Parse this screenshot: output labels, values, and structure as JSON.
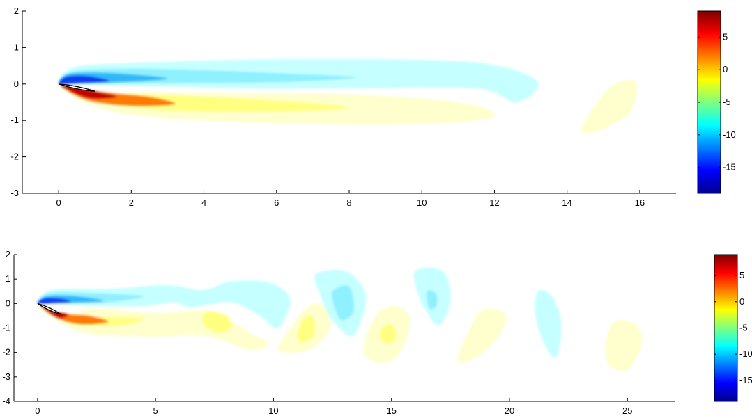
{
  "chart_data": [
    {
      "type": "heatmap",
      "subtype": "filled-contour",
      "title": "",
      "xlabel": "",
      "ylabel": "",
      "xlim": [
        -1,
        17
      ],
      "ylim": [
        -3,
        2
      ],
      "xticks": [
        0,
        2,
        4,
        6,
        8,
        10,
        12,
        14,
        16
      ],
      "yticks": [
        2,
        1,
        0,
        -1,
        -2,
        -3
      ],
      "grid": false,
      "colormap": "jet",
      "colorbar": {
        "range": [
          -19,
          9
        ],
        "ticks": [
          5,
          0,
          -5,
          -10,
          -15
        ]
      },
      "airfoil": {
        "leading_edge": [
          0,
          0
        ],
        "trailing_edge": [
          1.0,
          -0.2
        ]
      },
      "regions": [
        {
          "sign": "negative",
          "value": -5.5,
          "color": "#c6ffff",
          "outline": [
            [
              0,
              0.03
            ],
            [
              0.4,
              0.45
            ],
            [
              2,
              0.58
            ],
            [
              6,
              0.68
            ],
            [
              10,
              0.66
            ],
            [
              12,
              0.52
            ],
            [
              13.2,
              0.05
            ],
            [
              12.6,
              -0.5
            ],
            [
              11.5,
              -0.12
            ],
            [
              8,
              -0.12
            ],
            [
              5,
              -0.12
            ],
            [
              2,
              -0.05
            ],
            [
              0.3,
              0
            ]
          ]
        },
        {
          "sign": "negative",
          "value": -8,
          "color": "#8ff0ff",
          "outline": [
            [
              0,
              0.03
            ],
            [
              0.4,
              0.35
            ],
            [
              2,
              0.42
            ],
            [
              4,
              0.38
            ],
            [
              6,
              0.3
            ],
            [
              8.2,
              0.18
            ],
            [
              6,
              0.05
            ],
            [
              3,
              0.02
            ],
            [
              0.4,
              0
            ]
          ]
        },
        {
          "sign": "negative",
          "value": -11,
          "color": "#30b8f8",
          "outline": [
            [
              0,
              0.03
            ],
            [
              0.3,
              0.28
            ],
            [
              1.5,
              0.3
            ],
            [
              3,
              0.15
            ],
            [
              1.5,
              0.04
            ],
            [
              0.3,
              0
            ]
          ]
        },
        {
          "sign": "negative",
          "value": -16,
          "color": "#0a3cf0",
          "outline": [
            [
              0,
              0.02
            ],
            [
              0.2,
              0.2
            ],
            [
              0.8,
              0.22
            ],
            [
              1.4,
              0.08
            ],
            [
              0.6,
              0.02
            ],
            [
              0.1,
              0
            ]
          ]
        },
        {
          "sign": "positive",
          "value": -4.5,
          "color": "#feffcc",
          "outline": [
            [
              0,
              -0.05
            ],
            [
              1,
              -0.3
            ],
            [
              2,
              -0.22
            ],
            [
              5,
              -0.25
            ],
            [
              8,
              -0.28
            ],
            [
              11,
              -0.5
            ],
            [
              12,
              -0.9
            ],
            [
              10,
              -1.1
            ],
            [
              6,
              -1.08
            ],
            [
              2.5,
              -0.9
            ],
            [
              0.8,
              -0.55
            ],
            [
              0.1,
              -0.05
            ]
          ]
        },
        {
          "sign": "positive",
          "value": -3,
          "color": "#ffff80",
          "outline": [
            [
              0.1,
              -0.1
            ],
            [
              1,
              -0.25
            ],
            [
              3,
              -0.3
            ],
            [
              6,
              -0.45
            ],
            [
              8,
              -0.65
            ],
            [
              6,
              -0.75
            ],
            [
              3,
              -0.72
            ],
            [
              1,
              -0.5
            ]
          ]
        },
        {
          "sign": "positive",
          "value": 0,
          "color": "#ff7a00",
          "outline": [
            [
              0.1,
              -0.05
            ],
            [
              1,
              -0.2
            ],
            [
              2.5,
              -0.35
            ],
            [
              3.2,
              -0.55
            ],
            [
              2,
              -0.6
            ],
            [
              0.8,
              -0.45
            ]
          ]
        },
        {
          "sign": "positive",
          "value": 5,
          "color": "#c00000",
          "outline": [
            [
              0.1,
              -0.05
            ],
            [
              1,
              -0.2
            ],
            [
              1.6,
              -0.35
            ],
            [
              0.9,
              -0.4
            ],
            [
              0.3,
              -0.2
            ]
          ]
        },
        {
          "sign": "positive",
          "value": -4.5,
          "color": "#feffcc",
          "outline": [
            [
              14.4,
              -1.2
            ],
            [
              15.2,
              -0.08
            ],
            [
              15.9,
              0.05
            ],
            [
              15.7,
              -0.8
            ],
            [
              14.8,
              -1.3
            ]
          ]
        }
      ]
    },
    {
      "type": "heatmap",
      "subtype": "filled-contour",
      "title": "",
      "xlabel": "",
      "ylabel": "",
      "xlim": [
        -1,
        27
      ],
      "ylim": [
        -4,
        2
      ],
      "xticks": [
        0,
        5,
        10,
        15,
        20,
        25
      ],
      "yticks": [
        2,
        1,
        0,
        -1,
        -2,
        -3,
        -4
      ],
      "grid": false,
      "colormap": "jet",
      "colorbar": {
        "range": [
          -19,
          9
        ],
        "ticks": [
          5,
          0,
          -5,
          -10,
          -15
        ]
      },
      "airfoil": {
        "leading_edge": [
          0,
          0
        ],
        "trailing_edge": [
          1.0,
          -0.45
        ]
      },
      "regions": [
        {
          "sign": "negative",
          "value": -5.5,
          "color": "#c6ffff",
          "outline": [
            [
              0,
              0.03
            ],
            [
              0.6,
              0.55
            ],
            [
              3,
              0.6
            ],
            [
              5.5,
              0.75
            ],
            [
              7,
              0.55
            ],
            [
              8.2,
              0.9
            ],
            [
              9.8,
              0.85
            ],
            [
              10.7,
              0.2
            ],
            [
              10.2,
              -1.0
            ],
            [
              9.4,
              -0.5
            ],
            [
              8.2,
              0.05
            ],
            [
              6.5,
              -0.15
            ],
            [
              5.8,
              0.05
            ],
            [
              4.5,
              -0.1
            ],
            [
              2.5,
              -0.1
            ],
            [
              0.4,
              0
            ]
          ]
        },
        {
          "sign": "negative",
          "value": -8,
          "color": "#8ff0ff",
          "outline": [
            [
              0,
              0.03
            ],
            [
              0.5,
              0.42
            ],
            [
              2.5,
              0.42
            ],
            [
              4.5,
              0.3
            ],
            [
              3,
              0.05
            ],
            [
              0.4,
              0
            ]
          ]
        },
        {
          "sign": "negative",
          "value": -11,
          "color": "#30b8f8",
          "outline": [
            [
              0,
              0.03
            ],
            [
              0.4,
              0.3
            ],
            [
              1.6,
              0.3
            ],
            [
              2.8,
              0.1
            ],
            [
              1.4,
              0.02
            ],
            [
              0.3,
              0
            ]
          ]
        },
        {
          "sign": "negative",
          "value": -16,
          "color": "#0a3cf0",
          "outline": [
            [
              0,
              0.02
            ],
            [
              0.3,
              0.22
            ],
            [
              1,
              0.2
            ],
            [
              1.4,
              0.06
            ],
            [
              0.6,
              0.01
            ]
          ]
        },
        {
          "sign": "negative",
          "value": -5.5,
          "color": "#c6ffff",
          "outline": [
            [
              11.8,
              1.2
            ],
            [
              13.1,
              1.3
            ],
            [
              13.9,
              0.3
            ],
            [
              13.4,
              -1.3
            ],
            [
              12.5,
              -0.7
            ],
            [
              12,
              0.3
            ]
          ]
        },
        {
          "sign": "negative",
          "value": -8,
          "color": "#8ff0ff",
          "outline": [
            [
              12.5,
              0.5
            ],
            [
              13.2,
              0.7
            ],
            [
              13.4,
              -0.3
            ],
            [
              12.9,
              -0.7
            ],
            [
              12.6,
              -0.2
            ]
          ]
        },
        {
          "sign": "negative",
          "value": -5.5,
          "color": "#c6ffff",
          "outline": [
            [
              16.1,
              1.4
            ],
            [
              17.2,
              1.3
            ],
            [
              17.5,
              0.1
            ],
            [
              17,
              -0.9
            ],
            [
              16.4,
              -0.2
            ],
            [
              16,
              0.8
            ]
          ]
        },
        {
          "sign": "negative",
          "value": -8,
          "color": "#8ff0ff",
          "outline": [
            [
              16.5,
              0.5
            ],
            [
              16.9,
              0.4
            ],
            [
              16.9,
              -0.1
            ],
            [
              16.6,
              -0.2
            ]
          ]
        },
        {
          "sign": "negative",
          "value": -5.5,
          "color": "#c6ffff",
          "outline": [
            [
              21.2,
              0.5
            ],
            [
              21.8,
              0.3
            ],
            [
              22.2,
              -0.8
            ],
            [
              22,
              -2.2
            ],
            [
              21.5,
              -1.7
            ],
            [
              21.1,
              -0.5
            ]
          ]
        },
        {
          "sign": "positive",
          "value": -4.5,
          "color": "#feffcc",
          "outline": [
            [
              0,
              -0.05
            ],
            [
              1,
              -0.5
            ],
            [
              2.5,
              -0.2
            ],
            [
              5,
              -0.4
            ],
            [
              6.5,
              -0.3
            ],
            [
              7.5,
              -0.35
            ],
            [
              9,
              -1.2
            ],
            [
              9.8,
              -1.65
            ],
            [
              9,
              -1.9
            ],
            [
              7.5,
              -1.4
            ],
            [
              6.5,
              -1.3
            ],
            [
              4.5,
              -1.35
            ],
            [
              2,
              -1.2
            ],
            [
              0.5,
              -0.5
            ]
          ]
        },
        {
          "sign": "positive",
          "value": -3,
          "color": "#ffff80",
          "outline": [
            [
              0.3,
              -0.2
            ],
            [
              1.5,
              -0.5
            ],
            [
              3,
              -0.55
            ],
            [
              4.5,
              -0.6
            ],
            [
              3.5,
              -0.9
            ],
            [
              1.5,
              -0.85
            ]
          ]
        },
        {
          "sign": "positive",
          "value": 0,
          "color": "#ff7a00",
          "outline": [
            [
              0.1,
              -0.05
            ],
            [
              1,
              -0.4
            ],
            [
              2.2,
              -0.5
            ],
            [
              3,
              -0.75
            ],
            [
              1.8,
              -0.85
            ],
            [
              0.7,
              -0.55
            ]
          ]
        },
        {
          "sign": "positive",
          "value": 5,
          "color": "#c00000",
          "outline": [
            [
              0.1,
              -0.05
            ],
            [
              0.6,
              -0.3
            ],
            [
              1.3,
              -0.45
            ],
            [
              0.9,
              -0.6
            ],
            [
              0.4,
              -0.3
            ]
          ]
        },
        {
          "sign": "positive",
          "value": -3,
          "color": "#ffff80",
          "outline": [
            [
              7.2,
              -0.35
            ],
            [
              8,
              -0.5
            ],
            [
              8.2,
              -1.0
            ],
            [
              7.6,
              -1.2
            ],
            [
              7,
              -0.8
            ]
          ]
        },
        {
          "sign": "positive",
          "value": -4.5,
          "color": "#feffcc",
          "outline": [
            [
              10.8,
              -0.9
            ],
            [
              11.5,
              -0.1
            ],
            [
              12.1,
              -0.1
            ],
            [
              12.4,
              -1.0
            ],
            [
              11.5,
              -1.9
            ],
            [
              10.2,
              -1.9
            ]
          ]
        },
        {
          "sign": "positive",
          "value": -3,
          "color": "#ffff80",
          "outline": [
            [
              11,
              -1.3
            ],
            [
              11.3,
              -0.6
            ],
            [
              11.7,
              -0.6
            ],
            [
              11.7,
              -1.3
            ],
            [
              11.2,
              -1.6
            ]
          ]
        },
        {
          "sign": "positive",
          "value": -4.5,
          "color": "#feffcc",
          "outline": [
            [
              14.5,
              -0.3
            ],
            [
              15.5,
              -0.2
            ],
            [
              15.8,
              -0.9
            ],
            [
              15.2,
              -2.2
            ],
            [
              14.3,
              -2.4
            ],
            [
              13.8,
              -1.8
            ]
          ]
        },
        {
          "sign": "positive",
          "value": -3,
          "color": "#ffff80",
          "outline": [
            [
              14.6,
              -1.0
            ],
            [
              15,
              -0.85
            ],
            [
              15.2,
              -1.4
            ],
            [
              14.8,
              -1.65
            ],
            [
              14.5,
              -1.35
            ]
          ]
        },
        {
          "sign": "positive",
          "value": -4.5,
          "color": "#feffcc",
          "outline": [
            [
              18.8,
              -0.3
            ],
            [
              19.8,
              -0.4
            ],
            [
              19.6,
              -1.3
            ],
            [
              18.6,
              -2.2
            ],
            [
              17.8,
              -2.3
            ],
            [
              18.2,
              -1.3
            ]
          ]
        },
        {
          "sign": "positive",
          "value": -4.5,
          "color": "#feffcc",
          "outline": [
            [
              24.5,
              -0.7
            ],
            [
              25.4,
              -0.9
            ],
            [
              25.6,
              -1.7
            ],
            [
              25,
              -2.7
            ],
            [
              24.2,
              -2.5
            ],
            [
              24.1,
              -1.5
            ]
          ]
        }
      ]
    }
  ],
  "colors": {
    "axis": "#000000",
    "background": "#ffffff",
    "airfoil_outline": "#000000",
    "airfoil_fill": "#ffffff"
  }
}
